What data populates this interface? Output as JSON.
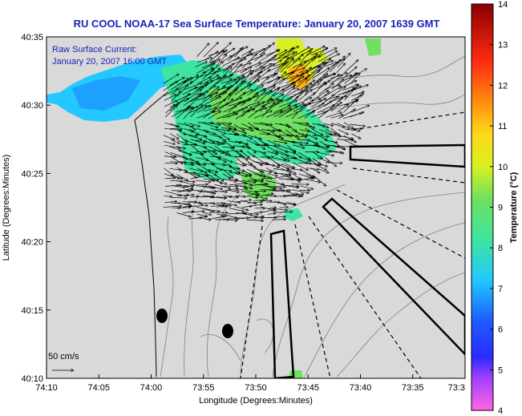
{
  "title": "RU COOL  NOAA-17  Sea Surface Temperature:  January 20, 2007 1639 GMT",
  "annotation": {
    "line1": "Raw Surface Current:",
    "line2": "January 20, 2007 16:00 GMT"
  },
  "scale_label": "50 cm/s",
  "colors": {
    "title": "#1a22b8",
    "land": "#d9d9d9",
    "ocean": "#d9d9d9",
    "contour": "#808080",
    "coast": "#000000"
  },
  "chart_data": {
    "type": "heatmap",
    "xlabel": "Longitude (Degrees:Minutes)",
    "ylabel": "Latitude (Degrees:Minutes)",
    "x_ticks": [
      "74:10",
      "74:05",
      "74:00",
      "73:55",
      "73:50",
      "73:45",
      "73:40",
      "73:35",
      "73:3"
    ],
    "y_ticks": [
      "40:10",
      "40:15",
      "40:20",
      "40:25",
      "40:30",
      "40:35"
    ],
    "xlim": [
      -74.1667,
      -73.5
    ],
    "ylim": [
      40.1667,
      40.5833
    ],
    "colorbar": {
      "label": "Temperature (°C)",
      "min": 4,
      "max": 14,
      "ticks": [
        "4",
        "5",
        "6",
        "7",
        "8",
        "9",
        "10",
        "11",
        "12",
        "13",
        "14"
      ]
    }
  }
}
